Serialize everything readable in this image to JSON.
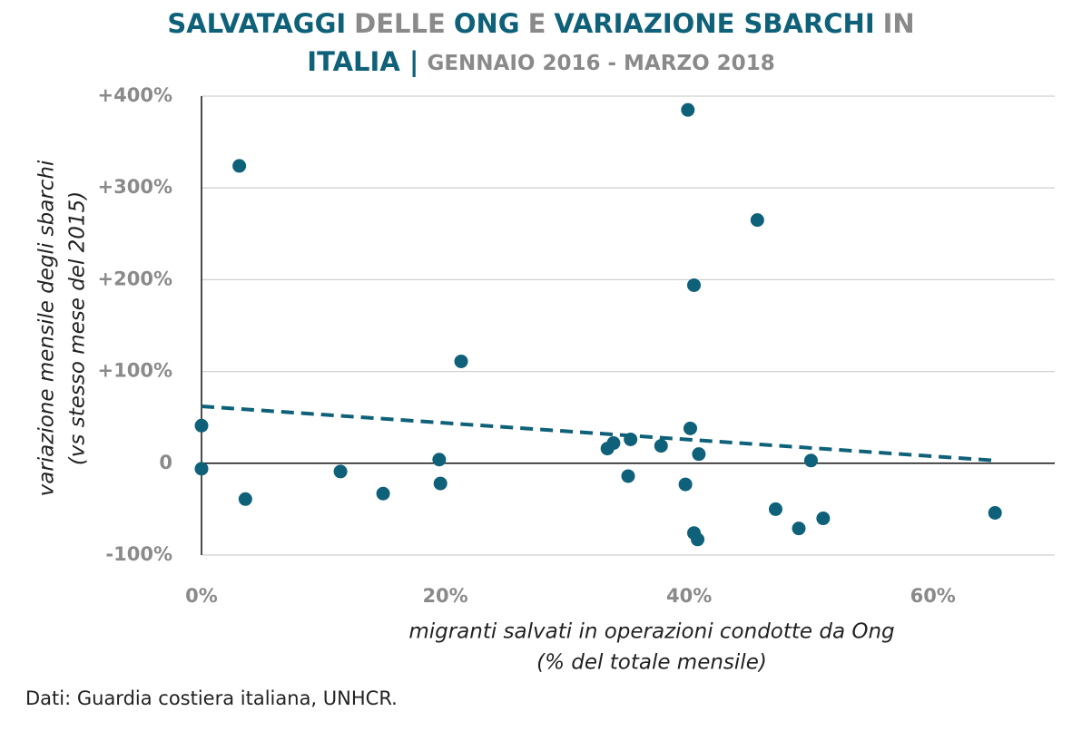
{
  "chart_data": {
    "type": "scatter",
    "title_lines": [
      [
        {
          "text": "SALVATAGGI",
          "color": "#0e6178"
        },
        {
          "text": "DELLE",
          "color": "#8a8a8a"
        },
        {
          "text": "ONG",
          "color": "#0e6178"
        },
        {
          "text": "E",
          "color": "#8a8a8a"
        },
        {
          "text": "VARIAZIONE SBARCHI",
          "color": "#0e6178"
        },
        {
          "text": "IN",
          "color": "#8a8a8a"
        }
      ],
      [
        {
          "text": "ITALIA |",
          "color": "#0e6178"
        },
        {
          "text": "GENNAIO 2016 - MARZO 2018",
          "color": "#8a8a8a"
        }
      ]
    ],
    "x_label": [
      "migranti salvati in operazioni condotte da Ong",
      "(% del totale mensile)"
    ],
    "y_label": [
      "variazione mensile degli sbarchi",
      "(vs stesso mese del 2015)"
    ],
    "source": "Dati: Guardia costiera italiana, UNHCR.",
    "color": "#0e6178",
    "x": [
      3.1,
      0,
      0,
      3.6,
      11.4,
      14.9,
      19.5,
      19.6,
      21.3,
      33.3,
      33.8,
      35.2,
      35.0,
      37.7,
      39.7,
      39.9,
      40.1,
      40.4,
      40.4,
      40.7,
      40.8,
      45.6,
      47.1,
      49.0,
      50.0,
      51.0,
      65.1
    ],
    "values": [
      324,
      41,
      -6,
      -39,
      -9,
      -33,
      4,
      -22,
      111,
      16,
      22,
      26,
      -14,
      19,
      -23,
      385,
      38,
      194,
      -76,
      -83,
      10,
      265,
      -50,
      -71,
      3,
      -60,
      -54
    ],
    "trendline": {
      "x": [
        0,
        65.1
      ],
      "values": [
        62,
        3
      ],
      "dashed": true
    },
    "xlim": [
      0,
      70
    ],
    "ylim": [
      -100,
      400
    ],
    "xticks": [
      {
        "value": 0,
        "label": "0%"
      },
      {
        "value": 20,
        "label": "20%"
      },
      {
        "value": 40,
        "label": "40%"
      },
      {
        "value": 60,
        "label": "60%"
      }
    ],
    "yticks": [
      {
        "value": -100,
        "label": "-100%"
      },
      0,
      {
        "value": 100,
        "label": "+100%"
      },
      {
        "value": 200,
        "label": "+200%"
      },
      {
        "value": 300,
        "label": "+300%"
      },
      {
        "value": 400,
        "label": "+400%"
      }
    ],
    "grid": true
  }
}
